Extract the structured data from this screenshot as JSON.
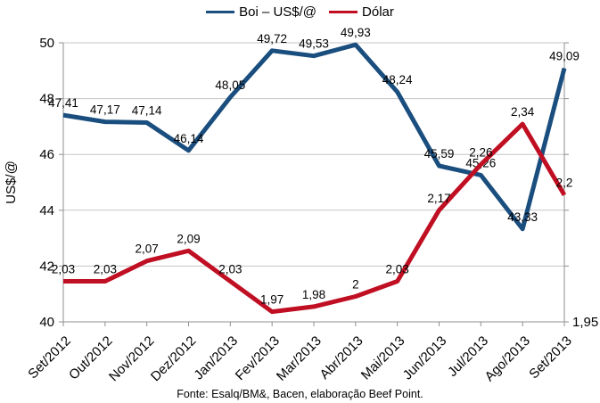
{
  "legend": {
    "items": [
      {
        "label": "Boi – US$/@"
      },
      {
        "label": "Dólar"
      }
    ]
  },
  "footer": "Fonte: Esalq/BM&, Bacen, elaboração Beef Point.",
  "colors": {
    "grid": "#c6c6c6",
    "axis": "#8f8f8f",
    "text": "#000000"
  },
  "chart_data": {
    "type": "line",
    "title": "",
    "ylabel_left": "US$/@",
    "categories": [
      "Set/2012",
      "Out/2012",
      "Nov/2012",
      "Dez/2012",
      "Jan/2013",
      "Fev/2013",
      "Mar/2013",
      "Abr/2013",
      "Mai/2013",
      "Jun/2013",
      "Jul/2013",
      "Ago/2013",
      "Set/2013"
    ],
    "series": [
      {
        "name": "Boi – US$/@",
        "axis": "left",
        "color": "#1A4E7E",
        "values": [
          47.41,
          47.17,
          47.14,
          46.14,
          48.05,
          49.72,
          49.53,
          49.93,
          48.24,
          45.59,
          45.26,
          43.33,
          49.09
        ],
        "labels": [
          "47,41",
          "47,17",
          "47,14",
          "46,14",
          "48,05",
          "49,72",
          "49,53",
          "49,93",
          "48,24",
          "45,59",
          "45,26",
          "43,33",
          "49,09"
        ]
      },
      {
        "name": "Dólar",
        "axis": "right",
        "color": "#C00F23",
        "values": [
          2.03,
          2.03,
          2.07,
          2.09,
          2.03,
          1.97,
          1.98,
          2.0,
          2.03,
          2.17,
          2.26,
          2.34,
          2.2
        ],
        "labels": [
          "2,03",
          "2,03",
          "2,07",
          "2,09",
          "2,03",
          "1,97",
          "1,98",
          "2",
          "2,03",
          "2,17",
          "2,26",
          "2,34",
          "2,2"
        ]
      }
    ],
    "left_axis": {
      "min": 40,
      "max": 50,
      "tick_step": 2,
      "tick_labels": [
        "40",
        "42",
        "44",
        "46",
        "48",
        "50"
      ]
    },
    "right_axis": {
      "min": 1.95,
      "max": 2.5,
      "visible_tick_label": "1,95"
    },
    "grid": "horizontal",
    "legend_position": "top"
  }
}
